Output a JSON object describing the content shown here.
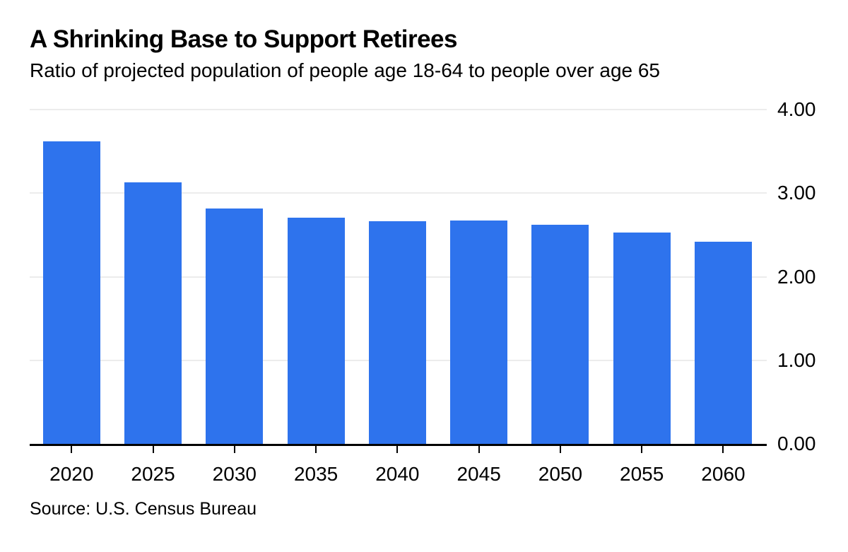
{
  "chart_data": {
    "type": "bar",
    "title": "A Shrinking Base to Support Retirees",
    "subtitle": "Ratio of projected population of people age 18-64 to people over age 65",
    "source": "Source: U.S. Census Bureau",
    "categories": [
      "2020",
      "2025",
      "2030",
      "2035",
      "2040",
      "2045",
      "2050",
      "2055",
      "2060"
    ],
    "values": [
      3.62,
      3.13,
      2.82,
      2.71,
      2.66,
      2.67,
      2.62,
      2.53,
      2.42
    ],
    "xlabel": "",
    "ylabel": "",
    "ylim": [
      0,
      4
    ],
    "y_ticks": [
      {
        "value": 4,
        "label": "4.00"
      },
      {
        "value": 3,
        "label": "3.00"
      },
      {
        "value": 2,
        "label": "2.00"
      },
      {
        "value": 1,
        "label": "1.00"
      },
      {
        "value": 0,
        "label": "0.00"
      }
    ],
    "grid": "horizontal",
    "legend": "none",
    "y_axis_side": "right",
    "colors": {
      "bar": "#2e73ed",
      "gridline": "#ececec",
      "axis": "#000000",
      "text": "#000000",
      "background": "#ffffff"
    }
  }
}
